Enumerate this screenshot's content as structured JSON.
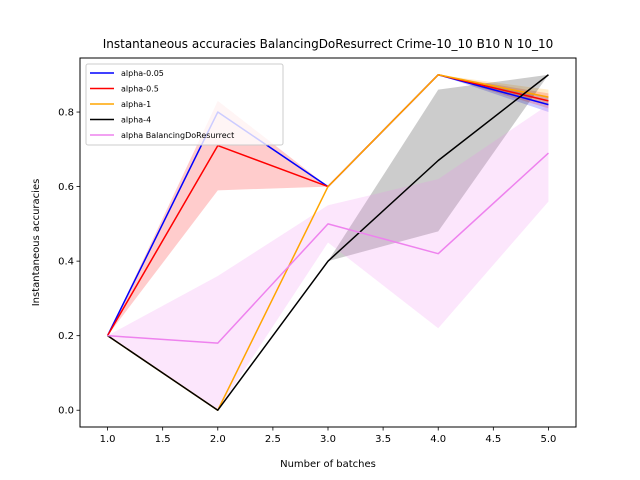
{
  "chart_data": {
    "type": "line",
    "title": "Instantaneous accuracies BalancingDoResurrect Crime-10_10 B10 N 10_10",
    "xlabel": "Number of batches",
    "ylabel": "Instantaneous accuracies",
    "xlim": [
      0.75,
      5.25
    ],
    "ylim": [
      -0.045,
      0.945
    ],
    "xticks": [
      1.0,
      1.5,
      2.0,
      2.5,
      3.0,
      3.5,
      4.0,
      4.5,
      5.0
    ],
    "xtick_labels": [
      "1.0",
      "1.5",
      "2.0",
      "2.5",
      "3.0",
      "3.5",
      "4.0",
      "4.5",
      "5.0"
    ],
    "yticks": [
      0.0,
      0.2,
      0.4,
      0.6,
      0.8
    ],
    "ytick_labels": [
      "0.0",
      "0.2",
      "0.4",
      "0.6",
      "0.8"
    ],
    "legend_position": "top-left",
    "x": [
      1,
      2,
      3,
      4,
      5
    ],
    "series": [
      {
        "name": "alpha-0.05",
        "color": "#0000ff",
        "values": [
          0.2,
          0.8,
          0.6,
          0.9,
          0.82
        ],
        "lower": [
          0.2,
          0.8,
          0.6,
          0.9,
          0.8
        ],
        "upper": [
          0.2,
          0.8,
          0.6,
          0.9,
          0.84
        ]
      },
      {
        "name": "alpha-0.5",
        "color": "#ff0000",
        "values": [
          0.2,
          0.71,
          0.6,
          0.9,
          0.83
        ],
        "lower": [
          0.2,
          0.59,
          0.6,
          0.9,
          0.81
        ],
        "upper": [
          0.2,
          0.83,
          0.6,
          0.9,
          0.85
        ]
      },
      {
        "name": "alpha-1",
        "color": "#ffa500",
        "values": [
          0.2,
          0.0,
          0.6,
          0.9,
          0.84
        ],
        "lower": [
          0.2,
          0.0,
          0.6,
          0.9,
          0.82
        ],
        "upper": [
          0.2,
          0.0,
          0.6,
          0.9,
          0.86
        ]
      },
      {
        "name": "alpha-4",
        "color": "#000000",
        "values": [
          0.2,
          0.0,
          0.4,
          0.67,
          0.9
        ],
        "lower": [
          0.2,
          0.0,
          0.4,
          0.48,
          0.9
        ],
        "upper": [
          0.2,
          0.0,
          0.4,
          0.86,
          0.9
        ]
      },
      {
        "name": "alpha BalancingDoResurrect",
        "color": "#ee82ee",
        "values": [
          0.2,
          0.18,
          0.5,
          0.42,
          0.69
        ],
        "lower": [
          0.2,
          0.0,
          0.45,
          0.22,
          0.56
        ],
        "upper": [
          0.2,
          0.36,
          0.55,
          0.62,
          0.82
        ]
      }
    ]
  }
}
